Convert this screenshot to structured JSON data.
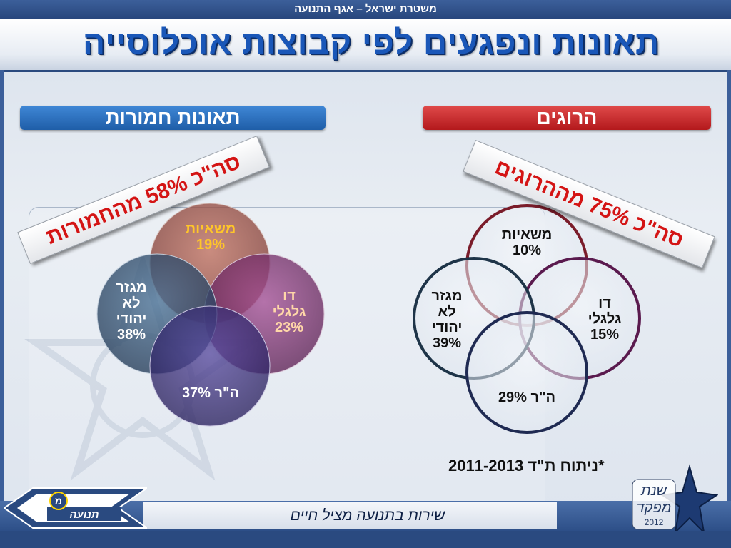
{
  "header": {
    "org": "משטרת ישראל – אגף התנועה",
    "title": "תאונות ונפגעים לפי קבוצות אוכלוסייה"
  },
  "left_panel": {
    "heading": "תאונות חמורות",
    "banner": "סה\"כ 58% מהחמורות",
    "circles": [
      {
        "label_line1": "משאיות",
        "label_line2": "19%",
        "value": 19,
        "color": "#9a4a3f"
      },
      {
        "label_line1": "דו",
        "label_line2": "גלגלי",
        "label_line3": "23%",
        "value": 23,
        "color": "#7a2f6a"
      },
      {
        "label_line1": "מגזר",
        "label_line2": "לא",
        "label_line3": "יהודי",
        "label_line4": "38%",
        "value": 38,
        "color": "#2e4f73"
      },
      {
        "label_line1": "ה\"ר 37%",
        "value": 37,
        "color": "#3a2f78"
      }
    ]
  },
  "right_panel": {
    "heading": "הרוגים",
    "banner": "סה\"כ 75% מההרוגים",
    "circles": [
      {
        "label_line1": "משאיות",
        "label_line2": "10%",
        "value": 10,
        "ring_color": "#7a1c2a"
      },
      {
        "label_line1": "דו",
        "label_line2": "גלגלי",
        "label_line3": "15%",
        "value": 15,
        "ring_color": "#5a1a4e"
      },
      {
        "label_line1": "מגזר",
        "label_line2": "לא",
        "label_line3": "יהודי",
        "label_line4": "39%",
        "value": 39,
        "ring_color": "#1e3448"
      },
      {
        "label_line1": "ה\"ר 29%",
        "value": 29,
        "ring_color": "#1f2a52"
      }
    ]
  },
  "note": "*ניתוח ת\"ד 2011-2013",
  "footer": {
    "slogan": "שירות בתנועה מציל חיים",
    "left_logo_text": "תנועה",
    "right_logo_line1": "שנת",
    "right_logo_line2": "מפקד",
    "right_logo_year": "2012"
  },
  "colors": {
    "title_blue": "#1a57b8",
    "heading_blue": "#2f74c4",
    "heading_red": "#c92424",
    "banner_text": "#d41414"
  }
}
